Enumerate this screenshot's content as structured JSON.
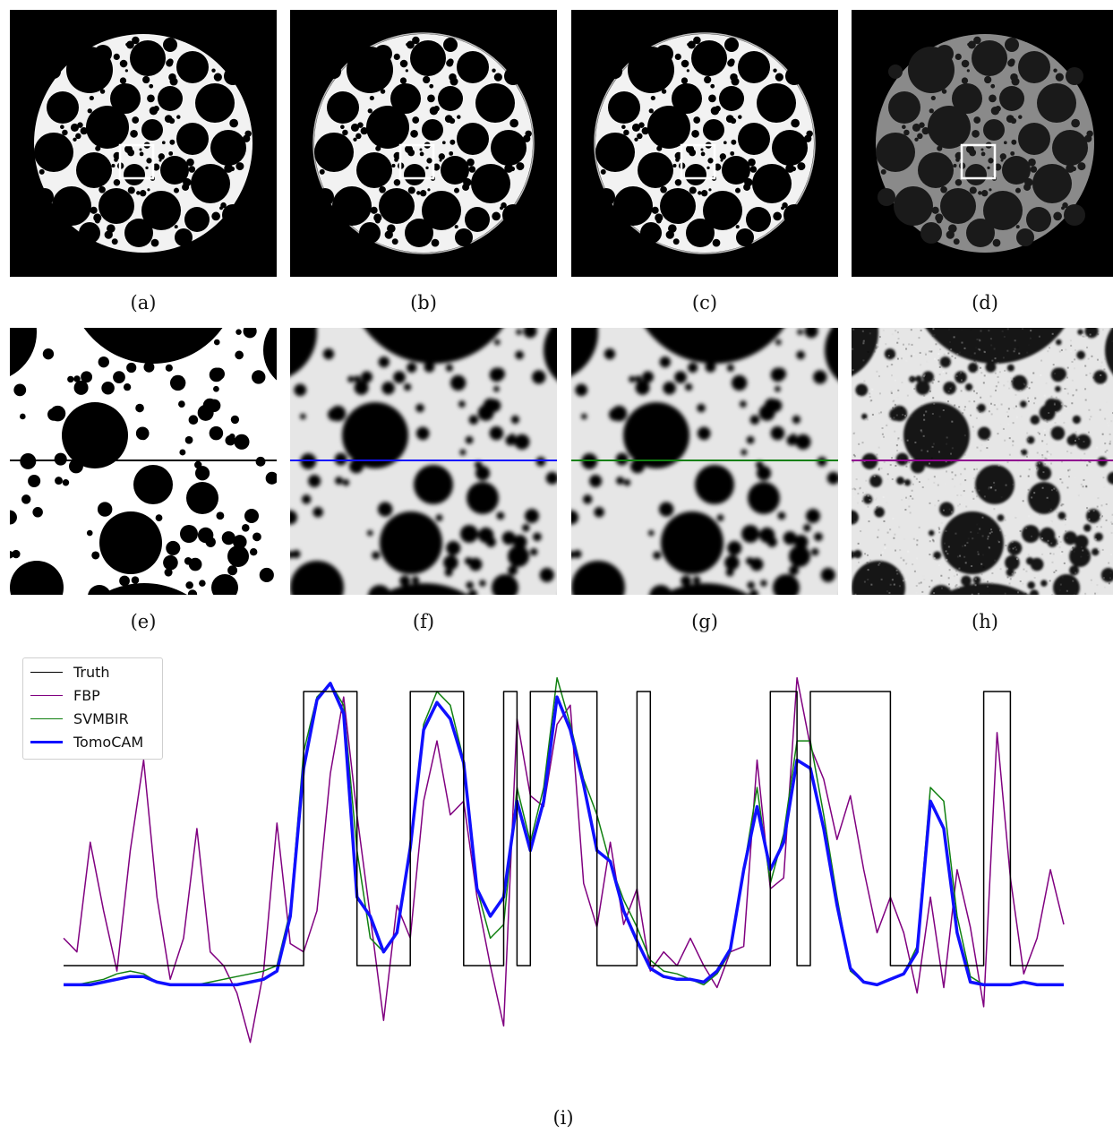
{
  "panels_top": [
    {
      "caption": "(a)",
      "style": "truth"
    },
    {
      "caption": "(b)",
      "style": "svmbir"
    },
    {
      "caption": "(c)",
      "style": "tomocam"
    },
    {
      "caption": "(d)",
      "style": "fbp"
    }
  ],
  "panels_zoom": [
    {
      "caption": "(e)",
      "line_color": "#000000"
    },
    {
      "caption": "(f)",
      "line_color": "#1010ff"
    },
    {
      "caption": "(g)",
      "line_color": "#108010"
    },
    {
      "caption": "(h)",
      "line_color": "#900090"
    }
  ],
  "plot_caption": "(i)",
  "chart_data": {
    "type": "line",
    "title": "",
    "xlabel": "",
    "ylabel": "",
    "axes": "off",
    "legend_position": "top-left",
    "x": [
      0,
      4,
      8,
      12,
      16,
      20,
      24,
      28,
      32,
      36,
      40,
      44,
      48,
      52,
      56,
      60,
      64,
      68,
      72,
      76,
      80,
      84,
      88,
      92,
      96,
      100,
      104,
      108,
      112,
      116,
      120,
      124,
      128,
      132,
      136,
      140,
      144,
      148,
      152,
      156,
      160,
      164,
      168,
      172,
      176,
      180,
      184,
      188,
      192,
      196,
      200,
      204,
      208,
      212,
      216,
      220,
      224,
      228,
      232,
      236,
      240,
      244,
      248,
      252,
      256,
      260,
      264,
      268,
      272,
      276,
      280,
      284,
      288,
      292,
      296,
      300
    ],
    "series": [
      {
        "name": "Truth",
        "color": "#000000",
        "width": 1.5,
        "values": [
          0.0,
          0.0,
          0.0,
          0.0,
          0.0,
          0.0,
          0.0,
          0.0,
          0.0,
          0.0,
          0.0,
          0.0,
          0.0,
          0.0,
          0.0,
          0.0,
          0.0,
          0.0,
          0.0,
          1.0,
          1.0,
          1.0,
          1.0,
          0.0,
          0.0,
          0.0,
          0.0,
          1.0,
          1.0,
          1.0,
          1.0,
          0.0,
          0.0,
          0.0,
          1.0,
          0.0,
          1.0,
          1.0,
          1.0,
          1.0,
          1.0,
          0.0,
          0.0,
          0.0,
          1.0,
          0.0,
          0.0,
          0.0,
          0.0,
          0.0,
          0.0,
          0.0,
          0.0,
          0.0,
          1.0,
          1.0,
          0.0,
          1.0,
          1.0,
          1.0,
          1.0,
          1.0,
          1.0,
          0.0,
          0.0,
          0.0,
          0.0,
          0.0,
          0.0,
          0.0,
          1.0,
          1.0,
          0.0,
          0.0,
          0.0,
          0.0
        ]
      },
      {
        "name": "FBP",
        "color": "#800080",
        "width": 1.5,
        "values": [
          0.1,
          0.05,
          0.45,
          0.2,
          -0.02,
          0.42,
          0.75,
          0.25,
          -0.05,
          0.1,
          0.5,
          0.05,
          0.0,
          -0.1,
          -0.28,
          -0.02,
          0.52,
          0.08,
          0.05,
          0.2,
          0.7,
          0.98,
          0.55,
          0.18,
          -0.2,
          0.22,
          0.1,
          0.6,
          0.82,
          0.55,
          0.6,
          0.25,
          0.0,
          -0.22,
          0.9,
          0.62,
          0.58,
          0.88,
          0.95,
          0.3,
          0.14,
          0.45,
          0.15,
          0.28,
          -0.02,
          0.05,
          0.0,
          0.1,
          0.0,
          -0.08,
          0.05,
          0.07,
          0.75,
          0.28,
          0.32,
          1.05,
          0.8,
          0.68,
          0.46,
          0.62,
          0.35,
          0.12,
          0.25,
          0.12,
          -0.1,
          0.25,
          -0.08,
          0.35,
          0.14,
          -0.15,
          0.85,
          0.32,
          -0.03,
          0.1,
          0.35,
          0.15
        ]
      },
      {
        "name": "SVMBIR",
        "color": "#108010",
        "width": 1.5,
        "values": [
          -0.07,
          -0.07,
          -0.06,
          -0.05,
          -0.03,
          -0.02,
          -0.03,
          -0.06,
          -0.07,
          -0.07,
          -0.07,
          -0.06,
          -0.05,
          -0.04,
          -0.03,
          -0.02,
          0.0,
          0.2,
          0.78,
          0.98,
          1.03,
          0.95,
          0.42,
          0.1,
          0.05,
          0.12,
          0.43,
          0.88,
          1.0,
          0.95,
          0.75,
          0.28,
          0.1,
          0.15,
          0.65,
          0.45,
          0.65,
          1.05,
          0.88,
          0.68,
          0.55,
          0.37,
          0.24,
          0.14,
          0.02,
          -0.02,
          -0.03,
          -0.05,
          -0.07,
          -0.03,
          0.05,
          0.35,
          0.65,
          0.3,
          0.48,
          0.82,
          0.82,
          0.55,
          0.25,
          -0.02,
          -0.06,
          -0.07,
          -0.05,
          -0.03,
          0.07,
          0.65,
          0.6,
          0.18,
          -0.04,
          -0.07,
          -0.07,
          -0.07,
          -0.06,
          -0.07,
          -0.07,
          -0.07
        ]
      },
      {
        "name": "TomoCAM",
        "color": "#1010ff",
        "width": 3.5,
        "values": [
          -0.07,
          -0.07,
          -0.07,
          -0.06,
          -0.05,
          -0.04,
          -0.04,
          -0.06,
          -0.07,
          -0.07,
          -0.07,
          -0.07,
          -0.07,
          -0.07,
          -0.06,
          -0.05,
          -0.02,
          0.18,
          0.72,
          0.97,
          1.03,
          0.92,
          0.25,
          0.18,
          0.05,
          0.12,
          0.43,
          0.86,
          0.96,
          0.9,
          0.74,
          0.28,
          0.18,
          0.25,
          0.6,
          0.42,
          0.6,
          0.98,
          0.86,
          0.66,
          0.42,
          0.38,
          0.2,
          0.09,
          -0.01,
          -0.04,
          -0.05,
          -0.05,
          -0.06,
          -0.02,
          0.06,
          0.35,
          0.58,
          0.35,
          0.45,
          0.75,
          0.72,
          0.5,
          0.22,
          -0.01,
          -0.06,
          -0.07,
          -0.05,
          -0.03,
          0.05,
          0.6,
          0.5,
          0.12,
          -0.06,
          -0.07,
          -0.07,
          -0.07,
          -0.06,
          -0.07,
          -0.07,
          -0.07
        ]
      }
    ]
  }
}
